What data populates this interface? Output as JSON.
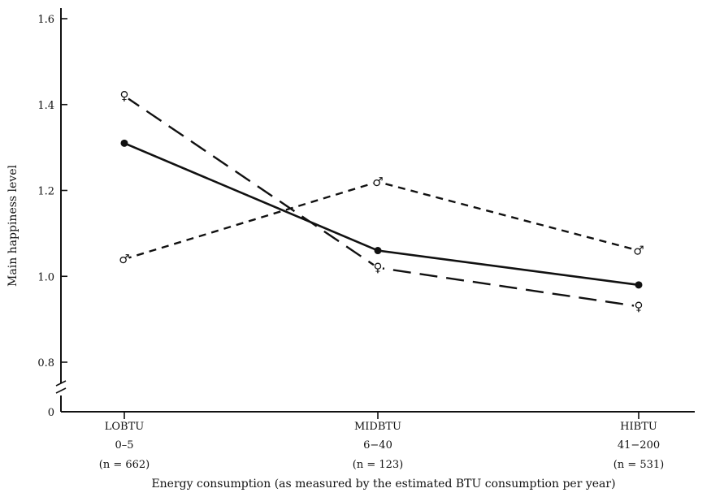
{
  "chart_data": {
    "type": "line",
    "title": "",
    "xlabel": "Energy consumption (as measured by the estimated BTU consumption per year)",
    "ylabel": "Main happiness level",
    "categories": [
      {
        "name": "LOBTU",
        "range": "0–5",
        "n": "(n = 662)"
      },
      {
        "name": "MIDBTU",
        "range": "6−40",
        "n": "(n = 123)"
      },
      {
        "name": "HIBTU",
        "range": "41−200",
        "n": "(n = 531)"
      }
    ],
    "yticks": [
      "0",
      "0.8",
      "1.0",
      "1.2",
      "1.4",
      "1.6"
    ],
    "ylim": [
      0.7,
      1.6
    ],
    "axis_break": true,
    "grid": false,
    "series": [
      {
        "values": [
          1.31,
          1.06,
          0.98
        ],
        "style": "solid",
        "marker": "dot",
        "symbol": ""
      },
      {
        "values": [
          1.42,
          1.02,
          0.93
        ],
        "style": "long-dash",
        "marker": "symbol",
        "symbol": "♀"
      },
      {
        "values": [
          1.04,
          1.22,
          1.06
        ],
        "style": "short-dash",
        "marker": "symbol",
        "symbol": "♂"
      }
    ],
    "colors": {
      "ink": "#111111",
      "background": "#ffffff"
    }
  }
}
